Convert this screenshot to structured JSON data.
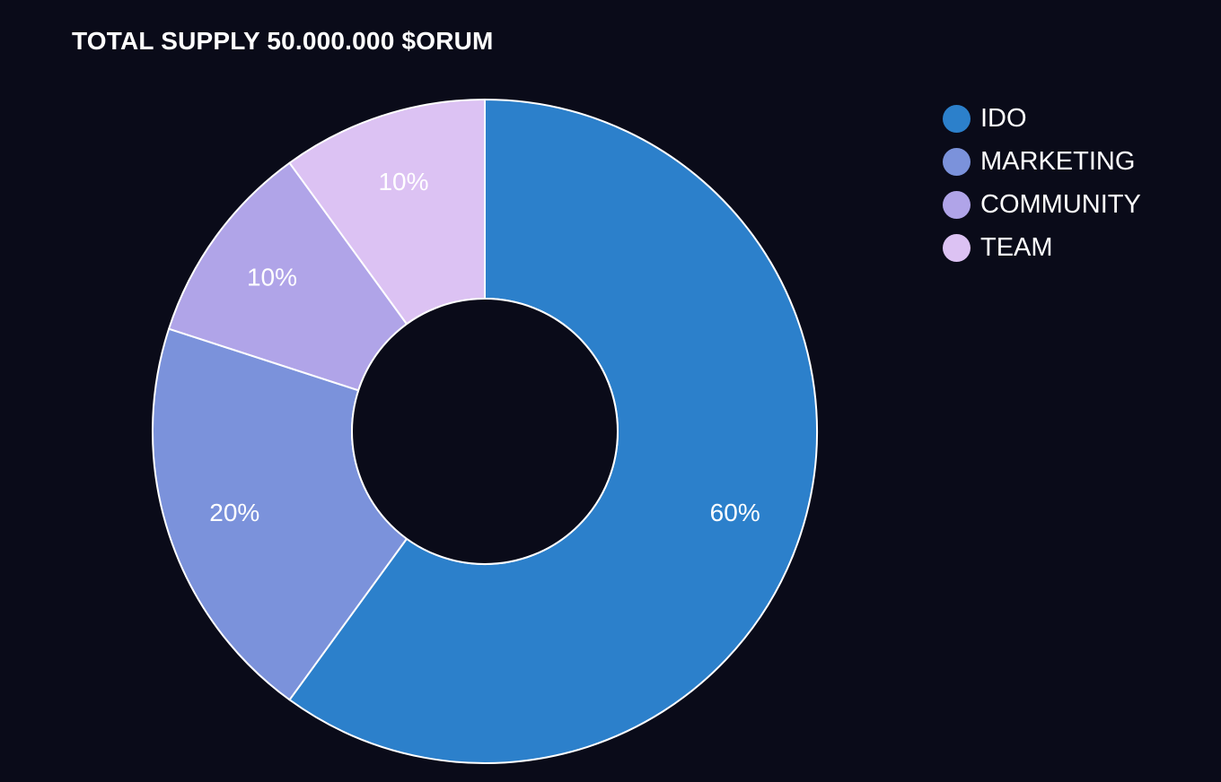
{
  "chart_data": {
    "type": "pie",
    "title": "TOTAL SUPPLY 50.000.000 $ORUM",
    "donut": true,
    "legend_position": "top-right",
    "slices": [
      {
        "name": "IDO",
        "value": 60,
        "label": "60%",
        "color": "#2c80cb"
      },
      {
        "name": "MARKETING",
        "value": 20,
        "label": "20%",
        "color": "#7b92db"
      },
      {
        "name": "COMMUNITY",
        "value": 10,
        "label": "10%",
        "color": "#b0a4e8"
      },
      {
        "name": "TEAM",
        "value": 10,
        "label": "10%",
        "color": "#dcc2f3"
      }
    ]
  },
  "colors": {
    "background": "#0a0b19",
    "text": "#ffffff",
    "slice_border": "#ffffff"
  }
}
